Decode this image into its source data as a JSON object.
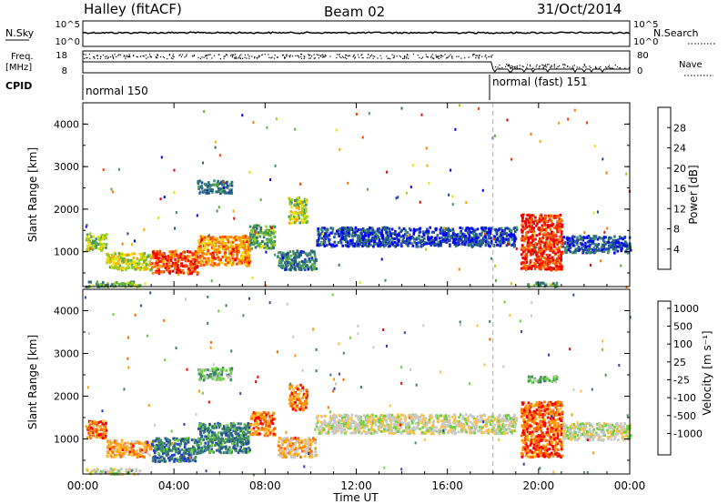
{
  "header": {
    "station": "Halley (fitACF)",
    "beam": "Beam 02",
    "date": "31/Oct/2014"
  },
  "strip_labels": {
    "nsky": "N.Sky",
    "nsearch": "N.Search",
    "nsky_ticks": [
      "10^5",
      "10^0"
    ],
    "nsearch_ticks": [
      "10^5",
      "10^0"
    ],
    "freq": "Freq.",
    "freq_unit": "[MHz]",
    "freq_ticks": [
      "18",
      "8"
    ],
    "nave": "Nave",
    "nave_ticks": [
      "80",
      "0"
    ],
    "cpid": "CPID",
    "mode_1": "normal 150",
    "mode_2": "normal (fast) 151"
  },
  "colors": {
    "velocity_scale": [
      "#ff0000",
      "#ff6a00",
      "#ff9b00",
      "#ffc040",
      "#c8c8c8",
      "#c8c8c8",
      "#6ad23c",
      "#3c9650",
      "#3c7878",
      "#2850a0",
      "#1e3cc8"
    ],
    "power_scale": [
      "#0000ff",
      "#1e4ba0",
      "#2e6e78",
      "#3f8f6a",
      "#5cb040",
      "#a0d020",
      "#f0e000",
      "#ffaa00",
      "#ff7a00",
      "#ff3c00",
      "#ee0000"
    ],
    "gate_groundscatter": "#a0a0a0"
  },
  "chart_data": [
    {
      "type": "heatmap",
      "name": "power",
      "ylabel": "Slant Range [km]",
      "xlabel": "",
      "colorbar_label": "Power [dB]",
      "colorbar_ticks": [
        "4",
        "8",
        "12",
        "16",
        "20",
        "24",
        "28"
      ],
      "xlim": [
        0,
        24
      ],
      "ylim": [
        180,
        4500
      ],
      "yticks": [
        "1000",
        "2000",
        "3000",
        "4000"
      ],
      "xticks": [
        "00:00",
        "04:00",
        "08:00",
        "12:00",
        "16:00",
        "20:00",
        "00:00"
      ],
      "vertical_marker_hours": 18,
      "features": [
        {
          "t0": 0.1,
          "t1": 1.0,
          "r0": 1050,
          "r1": 1450,
          "level": 0.45
        },
        {
          "t0": 1.0,
          "t1": 3.0,
          "r0": 600,
          "r1": 1000,
          "level": 0.55
        },
        {
          "t0": 3.0,
          "t1": 5.0,
          "r0": 500,
          "r1": 1050,
          "level": 0.85
        },
        {
          "t0": 5.0,
          "t1": 7.3,
          "r0": 700,
          "r1": 1400,
          "level": 0.75
        },
        {
          "t0": 7.3,
          "t1": 8.4,
          "r0": 1100,
          "r1": 1650,
          "level": 0.4
        },
        {
          "t0": 8.5,
          "t1": 10.2,
          "r0": 600,
          "r1": 1050,
          "level": 0.25
        },
        {
          "t0": 9.0,
          "t1": 9.8,
          "r0": 1700,
          "r1": 2300,
          "level": 0.5
        },
        {
          "t0": 5.0,
          "t1": 6.5,
          "r0": 2400,
          "r1": 2700,
          "level": 0.25
        },
        {
          "t0": 10.2,
          "t1": 19.0,
          "r0": 1150,
          "r1": 1600,
          "level": 0.12
        },
        {
          "t0": 19.2,
          "t1": 21.0,
          "r0": 600,
          "r1": 1900,
          "level": 0.9
        },
        {
          "t0": 21.0,
          "t1": 24.0,
          "r0": 1000,
          "r1": 1400,
          "level": 0.15
        },
        {
          "t0": 0.1,
          "t1": 2.5,
          "r0": 200,
          "r1": 330,
          "level": 0.4
        },
        {
          "t0": 19.5,
          "t1": 20.8,
          "r0": 200,
          "r1": 300,
          "level": 0.35
        }
      ]
    },
    {
      "type": "heatmap",
      "name": "velocity",
      "ylabel": "Slant Range [km]",
      "xlabel": "Time UT",
      "colorbar_label": "Velocity [m s⁻¹]",
      "colorbar_ticks": [
        "-1000",
        "-500",
        "-100",
        "-25",
        "25",
        "100",
        "500",
        "1000"
      ],
      "xlim": [
        0,
        24
      ],
      "ylim": [
        180,
        4500
      ],
      "yticks": [
        "1000",
        "2000",
        "3000",
        "4000"
      ],
      "xticks": [
        "00:00",
        "04:00",
        "08:00",
        "12:00",
        "16:00",
        "20:00",
        "00:00"
      ],
      "vertical_marker_hours": 18,
      "features": [
        {
          "t0": 0.1,
          "t1": 1.0,
          "r0": 1050,
          "r1": 1450,
          "level": 0.15
        },
        {
          "t0": 1.0,
          "t1": 3.0,
          "r0": 600,
          "r1": 1000,
          "level": 0.25
        },
        {
          "t0": 3.0,
          "t1": 5.0,
          "r0": 500,
          "r1": 1050,
          "level": 0.78
        },
        {
          "t0": 5.0,
          "t1": 7.3,
          "r0": 700,
          "r1": 1400,
          "level": 0.75
        },
        {
          "t0": 7.3,
          "t1": 8.4,
          "r0": 1100,
          "r1": 1650,
          "level": 0.2
        },
        {
          "t0": 8.5,
          "t1": 10.2,
          "r0": 600,
          "r1": 1050,
          "level": 0.3
        },
        {
          "t0": 9.0,
          "t1": 9.8,
          "r0": 1700,
          "r1": 2300,
          "level": 0.2
        },
        {
          "t0": 5.0,
          "t1": 6.5,
          "r0": 2400,
          "r1": 2700,
          "level": 0.62
        },
        {
          "t0": 10.2,
          "t1": 19.0,
          "r0": 1150,
          "r1": 1600,
          "level": 0.45
        },
        {
          "t0": 19.2,
          "t1": 21.0,
          "r0": 600,
          "r1": 1900,
          "level": 0.12
        },
        {
          "t0": 21.0,
          "t1": 24.0,
          "r0": 1000,
          "r1": 1400,
          "level": 0.45
        },
        {
          "t0": 0.1,
          "t1": 2.5,
          "r0": 200,
          "r1": 330,
          "level": 0.45
        },
        {
          "t0": 19.5,
          "t1": 20.8,
          "r0": 2350,
          "r1": 2500,
          "level": 0.62
        }
      ]
    }
  ]
}
